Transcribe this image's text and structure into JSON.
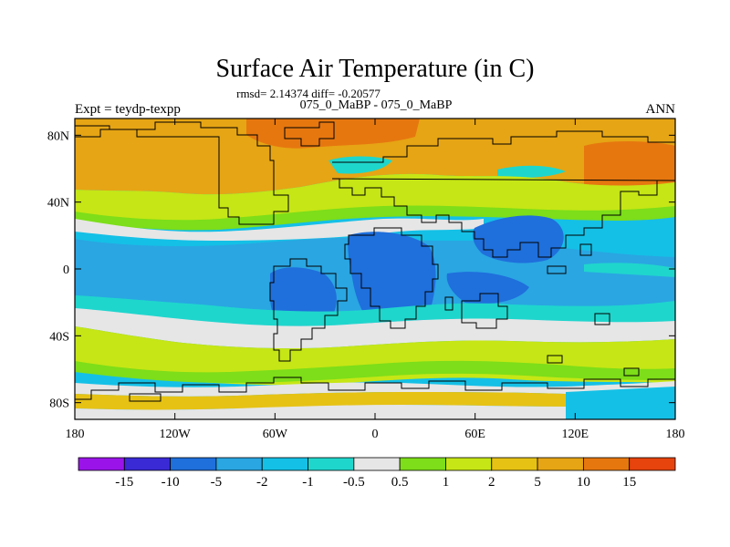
{
  "title": "Surface Air Temperature (in C)",
  "stats": "rmsd= 2.14374  diff= -0.20577",
  "subtitle": "075_0_MaBP - 075_0_MaBP",
  "left_label": "Expt = teydp-texpp",
  "right_label": "ANN",
  "y_ticks": [
    {
      "label": "80N",
      "lat": 80
    },
    {
      "label": "40N",
      "lat": 40
    },
    {
      "label": "0",
      "lat": 0
    },
    {
      "label": "40S",
      "lat": -40
    },
    {
      "label": "80S",
      "lat": -80
    }
  ],
  "x_ticks": [
    {
      "label": "180",
      "lon": -180
    },
    {
      "label": "120W",
      "lon": -120
    },
    {
      "label": "60W",
      "lon": -60
    },
    {
      "label": "0",
      "lon": 0
    },
    {
      "label": "60E",
      "lon": 60
    },
    {
      "label": "120E",
      "lon": 120
    },
    {
      "label": "180",
      "lon": 180
    }
  ],
  "colorbar": {
    "colors": [
      "#9a14ea",
      "#3a2ad6",
      "#1f6fdc",
      "#2aa6e2",
      "#14c0e6",
      "#1fd6cc",
      "#e6e6e6",
      "#7dde19",
      "#c6e615",
      "#e6c214",
      "#e6a514",
      "#e6770f",
      "#e6430d"
    ],
    "labels": [
      "-15",
      "-10",
      "-5",
      "-2",
      "-1",
      "-0.5",
      "0.5",
      "1",
      "2",
      "5",
      "10",
      "15"
    ]
  },
  "colors": {
    "deep_blue": "#1f6fdc",
    "blue": "#2aa6e2",
    "cyan": "#14c0e6",
    "teal": "#1fd6cc",
    "neutral": "#e6e6e6",
    "green": "#7dde19",
    "yellow_green": "#c6e615",
    "yellow": "#e6c214",
    "orange": "#e6a514",
    "dark_orange": "#e6770f"
  }
}
